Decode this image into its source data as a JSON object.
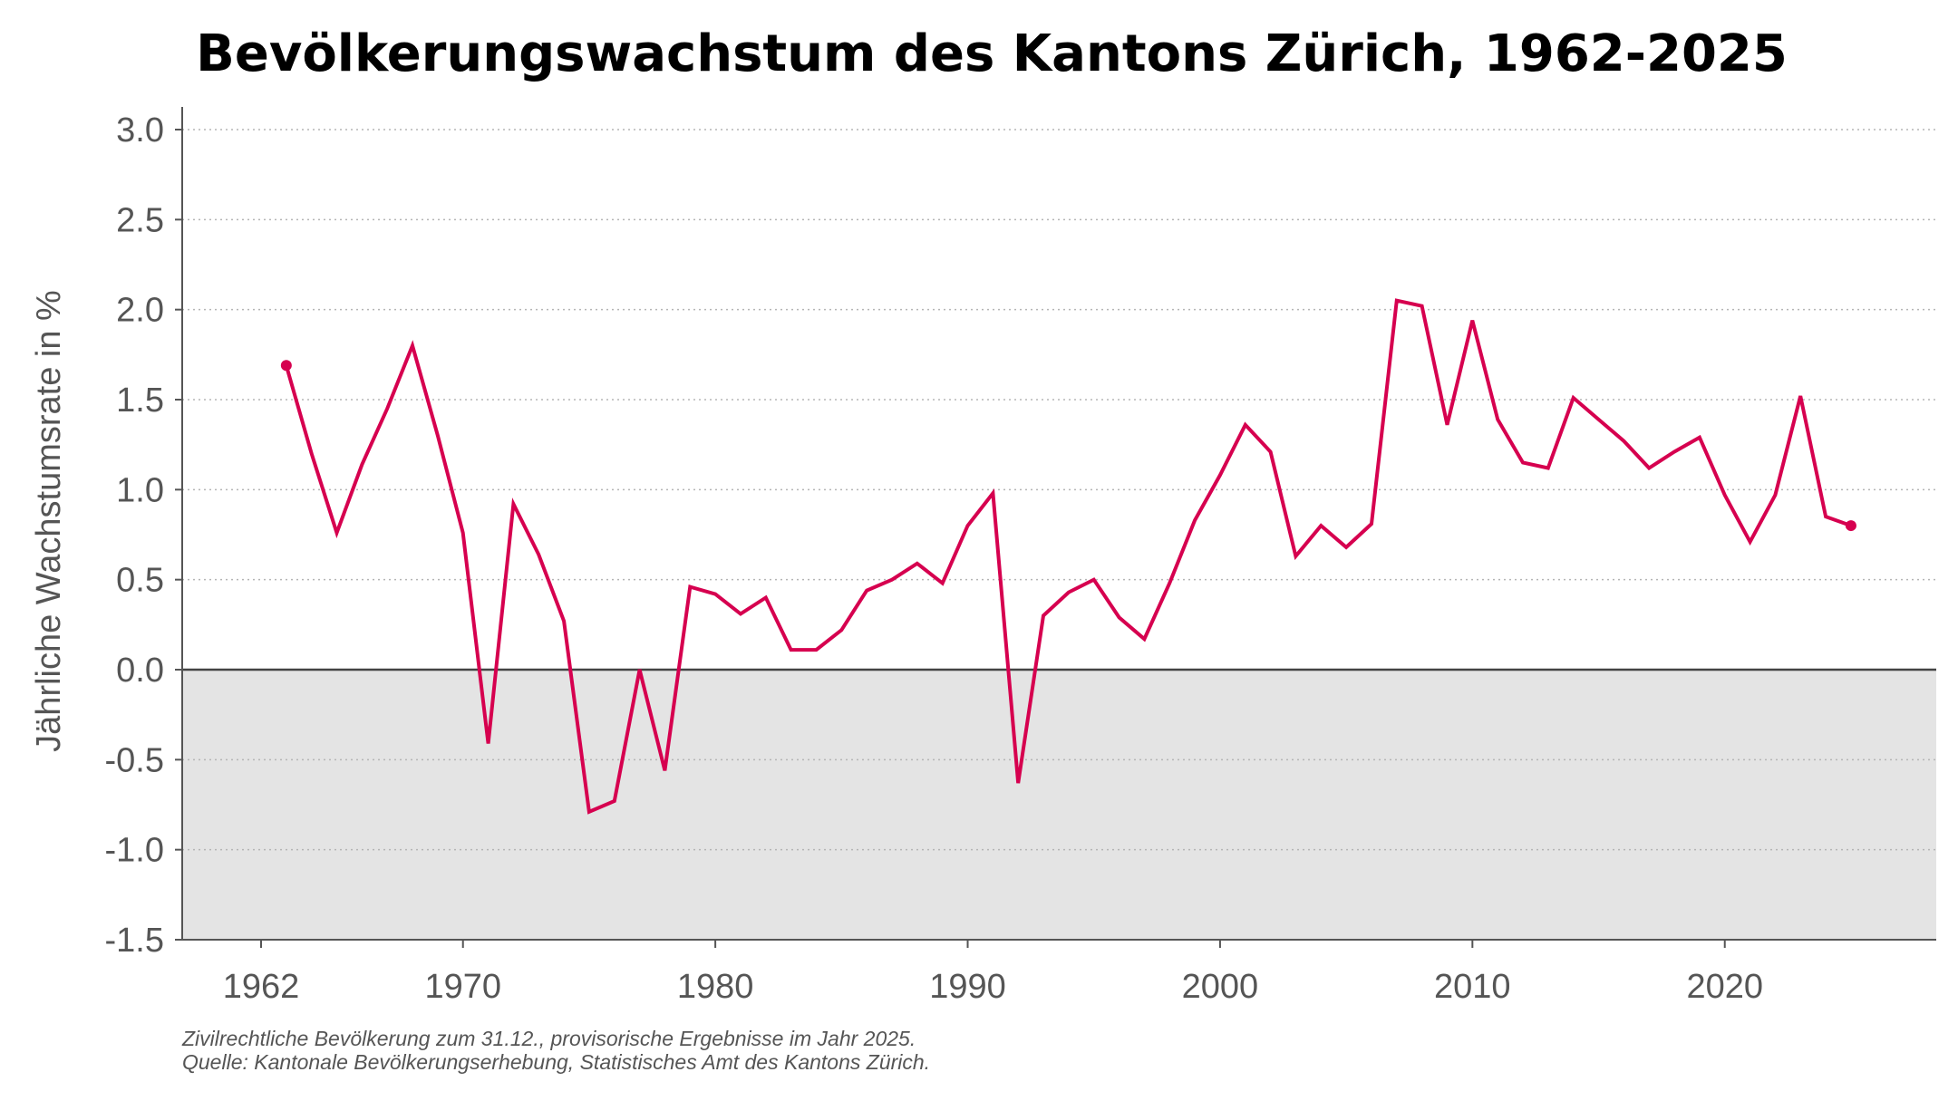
{
  "chart_data": {
    "type": "line",
    "title": "Bevölkerungswachstum des Kantons Zürich, 1962-2025",
    "xlabel": "",
    "ylabel": "Jährliche Wachstumsrate in %",
    "xlim": [
      1959,
      2028
    ],
    "ylim": [
      -1.5,
      3.0
    ],
    "xticks": [
      1962,
      1970,
      1980,
      1990,
      2000,
      2010,
      2020
    ],
    "yticks": [
      "3.0",
      "2.5",
      "2.0",
      "1.5",
      "1.0",
      "0.5",
      "0.0",
      "-0.5",
      "-1.0",
      "-1.5"
    ],
    "grid": "horizontal dotted",
    "negative_region_shaded": true,
    "x": [
      1963,
      1964,
      1965,
      1966,
      1967,
      1968,
      1969,
      1970,
      1971,
      1972,
      1973,
      1974,
      1975,
      1976,
      1977,
      1978,
      1979,
      1980,
      1981,
      1982,
      1983,
      1984,
      1985,
      1986,
      1987,
      1988,
      1989,
      1990,
      1991,
      1992,
      1993,
      1994,
      1995,
      1996,
      1997,
      1998,
      1999,
      2000,
      2001,
      2002,
      2003,
      2004,
      2005,
      2006,
      2007,
      2008,
      2009,
      2010,
      2011,
      2012,
      2013,
      2014,
      2015,
      2016,
      2017,
      2018,
      2019,
      2020,
      2021,
      2022,
      2023,
      2024,
      2025
    ],
    "y": [
      1.69,
      1.2,
      0.76,
      1.14,
      1.45,
      1.8,
      1.3,
      0.76,
      -0.41,
      0.92,
      0.64,
      0.27,
      -0.79,
      -0.73,
      0.0,
      -0.56,
      0.46,
      0.42,
      0.31,
      0.4,
      0.11,
      0.11,
      0.22,
      0.44,
      0.5,
      0.59,
      0.48,
      0.8,
      0.98,
      -0.63,
      0.3,
      0.43,
      0.5,
      0.29,
      0.17,
      0.48,
      0.83,
      1.08,
      1.36,
      1.21,
      0.63,
      0.8,
      0.68,
      0.81,
      2.05,
      2.02,
      1.36,
      1.94,
      1.39,
      1.15,
      1.12,
      1.51,
      1.39,
      1.27,
      1.12,
      1.21,
      1.29,
      0.97,
      0.71,
      0.97,
      1.52,
      0.85,
      0.8
    ],
    "endpoint_markers": true,
    "colors": {
      "line": "#d6004f",
      "negative_area": "#e4e4e4",
      "grid": "#b5b5b5",
      "axis": "#555555"
    },
    "caption": [
      "Zivilrechtliche Bevölkerung zum 31.12., provisorische Ergebnisse im Jahr 2025.",
      "Quelle: Kantonale Bevölkerungserhebung, Statistisches Amt des Kantons Zürich."
    ]
  }
}
